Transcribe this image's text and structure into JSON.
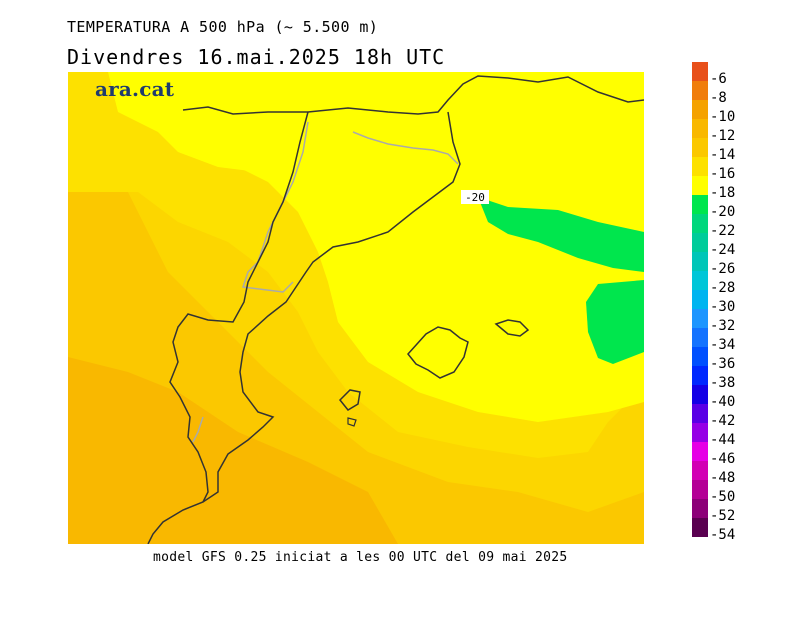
{
  "header": {
    "title": "TEMPERATURA A 500 hPa (~ 5.500 m)",
    "subtitle": "Divendres  16.mai.2025 18h UTC"
  },
  "logo": {
    "text": "ara.cat"
  },
  "map": {
    "contour_label": "-20",
    "colors": {
      "warm_orange": "#f9b800",
      "orange": "#fbc800",
      "light_orange": "#fcd600",
      "yellow_orange": "#fde100",
      "yellow": "#ffff00",
      "green": "#00e64d",
      "coast": "#333333",
      "border": "#aaaaaa"
    }
  },
  "legend": {
    "labels": [
      "-6",
      "-8",
      "-10",
      "-12",
      "-14",
      "-16",
      "-18",
      "-20",
      "-22",
      "-24",
      "-26",
      "-28",
      "-30",
      "-32",
      "-34",
      "-36",
      "-38",
      "-40",
      "-42",
      "-44",
      "-46",
      "-48",
      "-50",
      "-52",
      "-54"
    ],
    "colors": [
      "#e8501a",
      "#f07d0c",
      "#f5a200",
      "#f9b800",
      "#fbc800",
      "#fde100",
      "#ffff00",
      "#00e64d",
      "#00d77c",
      "#00cc9a",
      "#00c6b8",
      "#00c6d8",
      "#00b4f0",
      "#1e96ff",
      "#1473ff",
      "#0050ff",
      "#0028ff",
      "#1400e6",
      "#5a00e6",
      "#9600e6",
      "#e600e6",
      "#d200b4",
      "#b40096",
      "#8c0078",
      "#5a0050"
    ]
  },
  "footer": {
    "text": "model GFS 0.25 iniciat a les 00 UTC del 09 mai 2025"
  }
}
